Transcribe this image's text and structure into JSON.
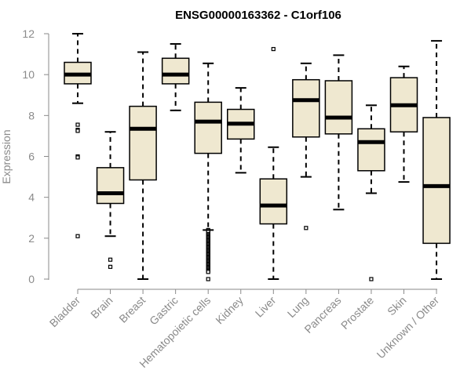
{
  "chart_data": {
    "type": "boxplot",
    "title": "ENSG00000163362 - C1orf106",
    "xlabel": "",
    "ylabel": "Expression",
    "ylim": [
      0,
      12
    ],
    "yticks": [
      0,
      2,
      4,
      6,
      8,
      10,
      12
    ],
    "colors": {
      "box_fill": "#efe8d0",
      "box_stroke": "#000000",
      "axis": "#8a8a8a",
      "text": "#8a8a8a"
    },
    "categories": [
      "Bladder",
      "Brain",
      "Breast",
      "Gastric",
      "Hematopoietic cells",
      "Kidney",
      "Liver",
      "Lung",
      "Pancreas",
      "Prostate",
      "Skin",
      "Unknown / Other"
    ],
    "boxes": [
      {
        "category": "Bladder",
        "whisker_low": 8.6,
        "q1": 9.55,
        "median": 10.0,
        "q3": 10.6,
        "whisker_high": 12.0,
        "outliers": [
          7.55,
          7.3,
          7.25,
          6.0,
          5.95,
          2.1
        ]
      },
      {
        "category": "Brain",
        "whisker_low": 2.1,
        "q1": 3.7,
        "median": 4.2,
        "q3": 5.45,
        "whisker_high": 7.2,
        "outliers": [
          0.95,
          0.6
        ]
      },
      {
        "category": "Breast",
        "whisker_low": 0.0,
        "q1": 4.85,
        "median": 7.35,
        "q3": 8.45,
        "whisker_high": 11.1,
        "outliers": []
      },
      {
        "category": "Gastric",
        "whisker_low": 8.25,
        "q1": 9.55,
        "median": 10.0,
        "q3": 10.8,
        "whisker_high": 11.5,
        "outliers": []
      },
      {
        "category": "Hematopoietic cells",
        "whisker_low": 2.4,
        "q1": 6.15,
        "median": 7.7,
        "q3": 8.65,
        "whisker_high": 10.55,
        "outliers": [
          2.4,
          2.35,
          2.3,
          2.2,
          2.15,
          2.1,
          2.05,
          2.0,
          1.95,
          1.9,
          1.85,
          1.8,
          1.75,
          1.7,
          1.65,
          1.6,
          1.55,
          1.5,
          1.45,
          1.4,
          1.35,
          1.3,
          1.25,
          1.2,
          1.15,
          1.1,
          1.05,
          1.0,
          0.95,
          0.9,
          0.85,
          0.8,
          0.75,
          0.7,
          0.65,
          0.6,
          0.55,
          0.5,
          0.45,
          0.4,
          0.35,
          0.0
        ]
      },
      {
        "category": "Kidney",
        "whisker_low": 5.2,
        "q1": 6.85,
        "median": 7.6,
        "q3": 8.3,
        "whisker_high": 9.35,
        "outliers": []
      },
      {
        "category": "Liver",
        "whisker_low": 0.0,
        "q1": 2.7,
        "median": 3.6,
        "q3": 4.9,
        "whisker_high": 6.45,
        "outliers": [
          11.25
        ]
      },
      {
        "category": "Lung",
        "whisker_low": 5.0,
        "q1": 6.95,
        "median": 8.75,
        "q3": 9.75,
        "whisker_high": 10.55,
        "outliers": [
          2.5
        ]
      },
      {
        "category": "Pancreas",
        "whisker_low": 3.4,
        "q1": 7.1,
        "median": 7.9,
        "q3": 9.7,
        "whisker_high": 10.95,
        "outliers": []
      },
      {
        "category": "Prostate",
        "whisker_low": 4.2,
        "q1": 5.3,
        "median": 6.7,
        "q3": 7.35,
        "whisker_high": 8.5,
        "outliers": [
          0.0
        ]
      },
      {
        "category": "Skin",
        "whisker_low": 4.75,
        "q1": 7.2,
        "median": 8.5,
        "q3": 9.85,
        "whisker_high": 10.4,
        "outliers": []
      },
      {
        "category": "Unknown / Other",
        "whisker_low": 0.0,
        "q1": 1.75,
        "median": 4.55,
        "q3": 7.9,
        "whisker_high": 11.65,
        "outliers": []
      }
    ]
  }
}
